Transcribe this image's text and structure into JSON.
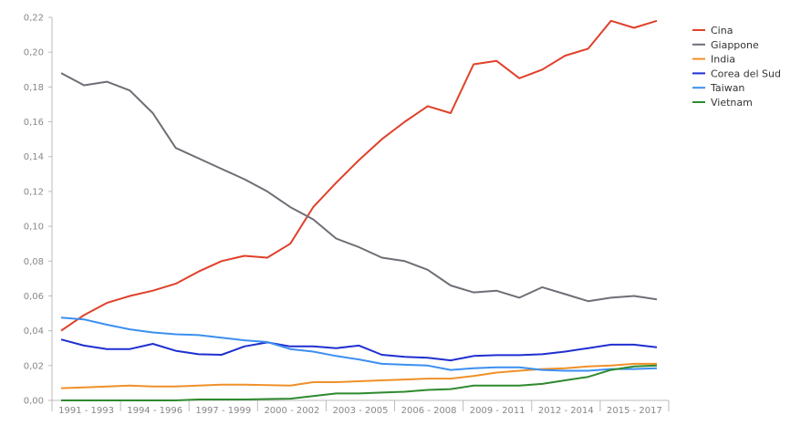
{
  "chart_data": {
    "type": "line",
    "categories": [
      "1991 - 1993",
      "1994 - 1996",
      "1997 - 1999",
      "2000 - 2002",
      "2003 - 2005",
      "2006 - 2008",
      "2009 - 2011",
      "2012 - 2014",
      "2015 - 2017"
    ],
    "x": [
      1991,
      1992,
      1993,
      1994,
      1995,
      1996,
      1997,
      1998,
      1999,
      2000,
      2001,
      2002,
      2003,
      2004,
      2005,
      2006,
      2007,
      2008,
      2009,
      2010,
      2011,
      2012,
      2013,
      2014,
      2015,
      2016,
      2017
    ],
    "ylim": [
      0,
      0.22
    ],
    "yticks": [
      "0,00",
      "0,02",
      "0,04",
      "0,06",
      "0,08",
      "0,10",
      "0,12",
      "0,14",
      "0,16",
      "0,18",
      "0,20",
      "0,22"
    ],
    "legend_position": "top-right",
    "grid": false,
    "series": [
      {
        "name": "Cina",
        "color": "#e0402a",
        "values": [
          0.04,
          0.049,
          0.056,
          0.06,
          0.063,
          0.067,
          0.074,
          0.08,
          0.083,
          0.082,
          0.09,
          0.111,
          0.125,
          0.138,
          0.15,
          0.16,
          0.169,
          0.165,
          0.193,
          0.195,
          0.185,
          0.19,
          0.198,
          0.202,
          0.218,
          0.214,
          0.218
        ]
      },
      {
        "name": "Giappone",
        "color": "#6e6e76",
        "values": [
          0.188,
          0.181,
          0.183,
          0.178,
          0.165,
          0.145,
          0.139,
          0.133,
          0.127,
          0.12,
          0.111,
          0.104,
          0.093,
          0.088,
          0.082,
          0.08,
          0.075,
          0.066,
          0.062,
          0.063,
          0.059,
          0.065,
          0.061,
          0.057,
          0.059,
          0.06,
          0.058
        ]
      },
      {
        "name": "India",
        "color": "#f0902a",
        "values": [
          0.007,
          0.0075,
          0.008,
          0.0085,
          0.008,
          0.008,
          0.0085,
          0.009,
          0.009,
          0.0088,
          0.0085,
          0.0105,
          0.0105,
          0.011,
          0.0115,
          0.012,
          0.0125,
          0.0125,
          0.014,
          0.016,
          0.017,
          0.018,
          0.0185,
          0.0195,
          0.02,
          0.021,
          0.021
        ]
      },
      {
        "name": "Corea del Sud",
        "color": "#1f2fd0",
        "values": [
          0.035,
          0.0315,
          0.0295,
          0.0295,
          0.0325,
          0.0285,
          0.0265,
          0.0262,
          0.031,
          0.0333,
          0.031,
          0.031,
          0.03,
          0.0315,
          0.0262,
          0.025,
          0.0245,
          0.023,
          0.0255,
          0.026,
          0.026,
          0.0265,
          0.028,
          0.03,
          0.032,
          0.032,
          0.0305
        ]
      },
      {
        "name": "Taiwan",
        "color": "#3c8ff0",
        "values": [
          0.0475,
          0.0465,
          0.0435,
          0.0408,
          0.039,
          0.038,
          0.0375,
          0.036,
          0.0345,
          0.0335,
          0.0295,
          0.028,
          0.0255,
          0.0235,
          0.021,
          0.0205,
          0.02,
          0.0175,
          0.0185,
          0.019,
          0.019,
          0.0175,
          0.017,
          0.017,
          0.018,
          0.018,
          0.0185
        ]
      },
      {
        "name": "Vietnam",
        "color": "#2e8a2e",
        "values": [
          0.0,
          0.0,
          0.0,
          0.0,
          0.0,
          0.0,
          0.0005,
          0.0005,
          0.0005,
          0.0008,
          0.001,
          0.0025,
          0.004,
          0.004,
          0.0045,
          0.005,
          0.006,
          0.0065,
          0.0085,
          0.0085,
          0.0085,
          0.0095,
          0.0115,
          0.0135,
          0.0175,
          0.0195,
          0.02
        ]
      }
    ]
  }
}
